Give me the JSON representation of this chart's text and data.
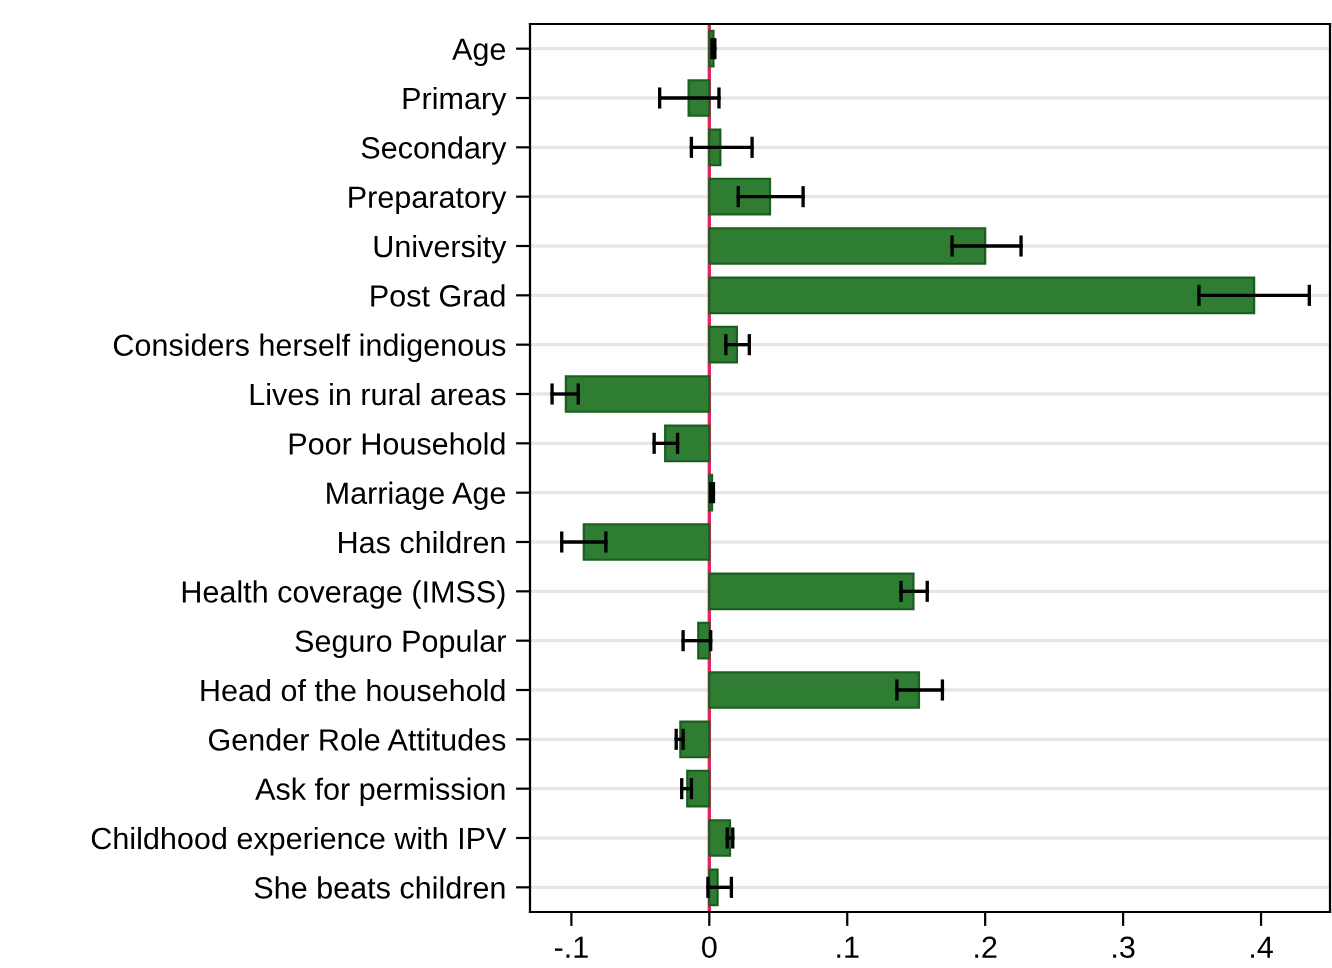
{
  "chart_data": {
    "type": "bar",
    "orientation": "horizontal",
    "categories": [
      "Age",
      "Primary",
      "Secondary",
      "Preparatory",
      "University",
      "Post Grad",
      "Considers herself indigenous",
      "Lives in rural areas",
      "Poor Household",
      "Marriage Age",
      "Has children",
      "Health coverage (IMSS)",
      "Seguro Popular",
      "Head of the household",
      "Gender Role Attitudes",
      "Ask for permission",
      "Childhood experience with IPV",
      "She beats children"
    ],
    "values": [
      0.003,
      -0.015,
      0.008,
      0.044,
      0.2,
      0.395,
      0.02,
      -0.104,
      -0.032,
      0.002,
      -0.091,
      0.148,
      -0.008,
      0.152,
      -0.021,
      -0.016,
      0.015,
      0.006
    ],
    "errors": [
      [
        0.002,
        0.004
      ],
      [
        -0.036,
        0.007
      ],
      [
        -0.013,
        0.031
      ],
      [
        0.021,
        0.068
      ],
      [
        0.176,
        0.226
      ],
      [
        0.355,
        0.435
      ],
      [
        0.012,
        0.029
      ],
      [
        -0.114,
        -0.095
      ],
      [
        -0.04,
        -0.023
      ],
      [
        0.001,
        0.003
      ],
      [
        -0.107,
        -0.075
      ],
      [
        0.139,
        0.158
      ],
      [
        -0.019,
        0.001
      ],
      [
        0.136,
        0.169
      ],
      [
        -0.024,
        -0.019
      ],
      [
        -0.02,
        -0.013
      ],
      [
        0.013,
        0.017
      ],
      [
        -0.001,
        0.016
      ]
    ],
    "color": "#2e7d32",
    "xlim": [
      -0.13,
      0.45
    ],
    "xticks": [
      {
        "value": -0.1,
        "label": "-.1"
      },
      0,
      {
        "value": 0.1,
        "label": ".1"
      },
      {
        "value": 0.2,
        "label": ".2"
      },
      {
        "value": 0.3,
        "label": ".3"
      },
      {
        "value": 0.4,
        "label": ".4"
      }
    ],
    "ref_lines": [
      {
        "axis": "x",
        "value": 0,
        "label": null,
        "color": "#e0245e"
      }
    ],
    "grid": "y"
  }
}
